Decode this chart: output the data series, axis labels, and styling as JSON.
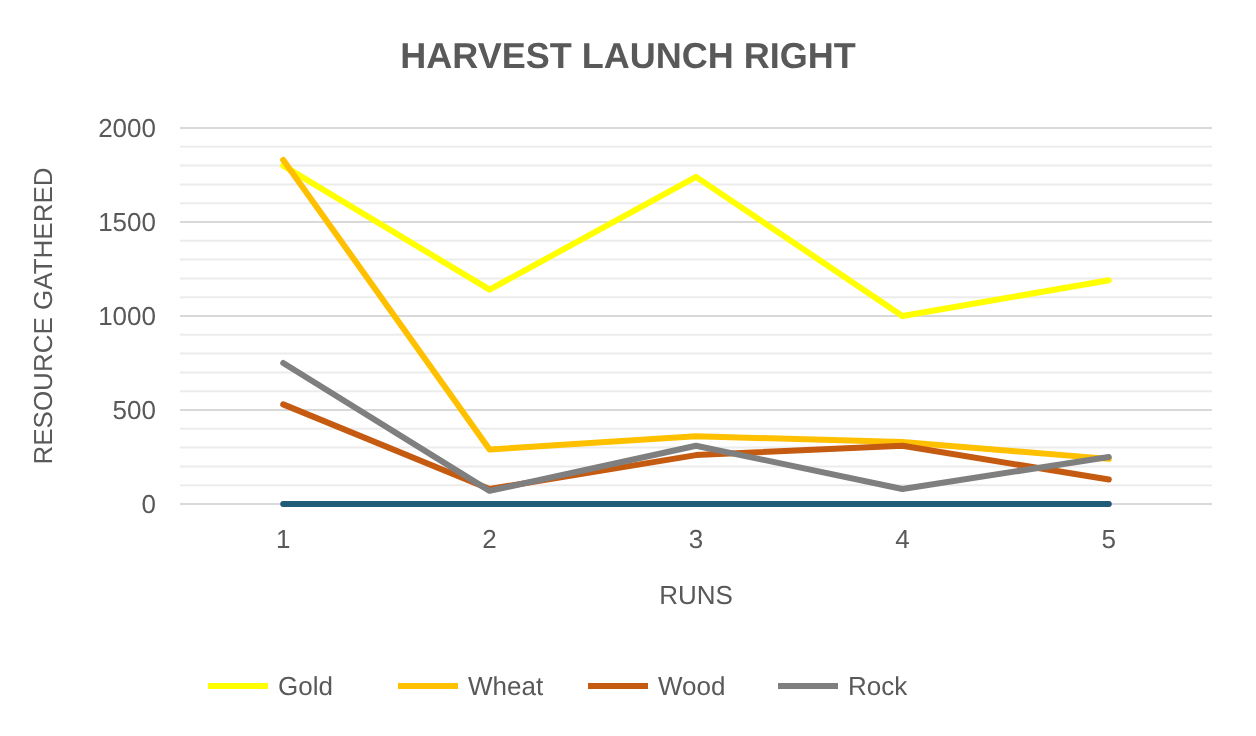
{
  "chart_data": {
    "type": "line",
    "title": "HARVEST LAUNCH RIGHT",
    "xlabel": "RUNS",
    "ylabel": "RESOURCE GATHERED",
    "categories": [
      "1",
      "2",
      "3",
      "4",
      "5"
    ],
    "series": [
      {
        "name": "Gold",
        "color": "#ffff00",
        "values": [
          1800,
          1140,
          1740,
          1000,
          1190
        ]
      },
      {
        "name": "Wheat",
        "color": "#ffc000",
        "values": [
          1830,
          290,
          360,
          330,
          240
        ]
      },
      {
        "name": "Wood",
        "color": "#c55a11",
        "values": [
          530,
          80,
          260,
          310,
          130
        ]
      },
      {
        "name": "Rock",
        "color": "#7f7f7f",
        "values": [
          750,
          70,
          310,
          80,
          250
        ]
      },
      {
        "color": "#1f5c7a",
        "values": [
          0,
          0,
          0,
          0,
          0
        ]
      }
    ],
    "ylim": [
      0,
      2000
    ],
    "yticks": [
      0,
      {
        "value": 100,
        "label": null
      },
      {
        "value": 200,
        "label": null
      },
      {
        "value": 300,
        "label": null
      },
      {
        "value": 400,
        "label": null
      },
      500,
      {
        "value": 600,
        "label": null
      },
      {
        "value": 700,
        "label": null
      },
      {
        "value": 800,
        "label": null
      },
      {
        "value": 900,
        "label": null
      },
      1000,
      {
        "value": 1100,
        "label": null
      },
      {
        "value": 1200,
        "label": null
      },
      {
        "value": 1300,
        "label": null
      },
      {
        "value": 1400,
        "label": null
      },
      1500,
      {
        "value": 1600,
        "label": null
      },
      {
        "value": 1700,
        "label": null
      },
      {
        "value": 1800,
        "label": null
      },
      {
        "value": 1900,
        "label": null
      },
      2000
    ],
    "grid": true,
    "legend": "bottom",
    "marker": "none",
    "line_style": "solid"
  }
}
